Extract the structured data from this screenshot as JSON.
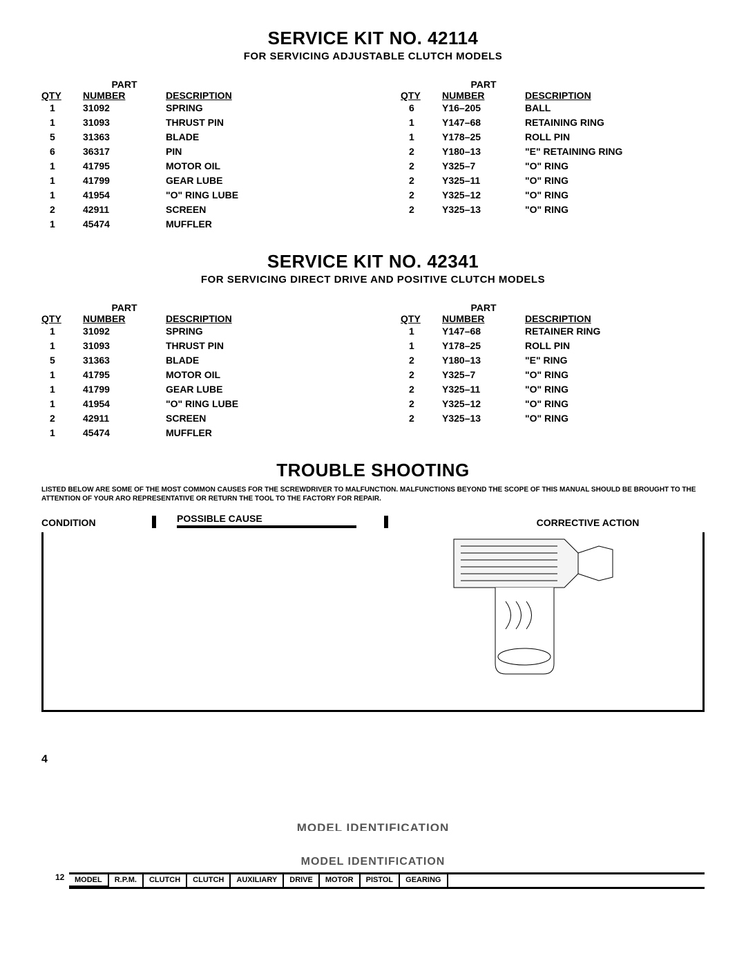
{
  "kit1": {
    "title": "SERVICE KIT NO. 42114",
    "subtitle": "FOR SERVICING ADJUSTABLE CLUTCH MODELS",
    "headers": {
      "qty": "QTY",
      "part": "PART",
      "number": "NUMBER",
      "desc": "DESCRIPTION"
    },
    "left": [
      {
        "qty": "1",
        "pn": "31092",
        "desc": "SPRING"
      },
      {
        "qty": "1",
        "pn": "31093",
        "desc": "THRUST PIN"
      },
      {
        "qty": "5",
        "pn": "31363",
        "desc": "BLADE"
      },
      {
        "qty": "6",
        "pn": "36317",
        "desc": "PIN"
      },
      {
        "qty": "1",
        "pn": "41795",
        "desc": "MOTOR OIL"
      },
      {
        "qty": "1",
        "pn": "41799",
        "desc": "GEAR LUBE"
      },
      {
        "qty": "1",
        "pn": "41954",
        "desc": "\"O\" RING LUBE"
      },
      {
        "qty": "2",
        "pn": "42911",
        "desc": "SCREEN"
      },
      {
        "qty": "1",
        "pn": "45474",
        "desc": "MUFFLER"
      }
    ],
    "right": [
      {
        "qty": "6",
        "pn": "Y16–205",
        "desc": "BALL"
      },
      {
        "qty": "1",
        "pn": "Y147–68",
        "desc": "RETAINING RING"
      },
      {
        "qty": "1",
        "pn": "Y178–25",
        "desc": "ROLL PIN"
      },
      {
        "qty": "2",
        "pn": "Y180–13",
        "desc": "\"E\" RETAINING RING"
      },
      {
        "qty": "2",
        "pn": "Y325–7",
        "desc": "\"O\" RING"
      },
      {
        "qty": "2",
        "pn": "Y325–11",
        "desc": "\"O\" RING"
      },
      {
        "qty": "2",
        "pn": "Y325–12",
        "desc": "\"O\" RING"
      },
      {
        "qty": "2",
        "pn": "Y325–13",
        "desc": "\"O\" RING"
      }
    ]
  },
  "kit2": {
    "title": "SERVICE KIT NO. 42341",
    "subtitle": "FOR SERVICING DIRECT DRIVE AND POSITIVE CLUTCH MODELS",
    "headers": {
      "qty": "QTY",
      "part": "PART",
      "number": "NUMBER",
      "desc": "DESCRIPTION"
    },
    "left": [
      {
        "qty": "1",
        "pn": "31092",
        "desc": "SPRING"
      },
      {
        "qty": "1",
        "pn": "31093",
        "desc": "THRUST PIN"
      },
      {
        "qty": "5",
        "pn": "31363",
        "desc": "BLADE"
      },
      {
        "qty": "1",
        "pn": "41795",
        "desc": "MOTOR OIL"
      },
      {
        "qty": "1",
        "pn": "41799",
        "desc": "GEAR LUBE"
      },
      {
        "qty": "1",
        "pn": "41954",
        "desc": "\"O\" RING LUBE"
      },
      {
        "qty": "2",
        "pn": "42911",
        "desc": "SCREEN"
      },
      {
        "qty": "1",
        "pn": "45474",
        "desc": "MUFFLER"
      }
    ],
    "right": [
      {
        "qty": "1",
        "pn": "Y147–68",
        "desc": "RETAINER RING"
      },
      {
        "qty": "1",
        "pn": "Y178–25",
        "desc": "ROLL PIN"
      },
      {
        "qty": "2",
        "pn": "Y180–13",
        "desc": "\"E\" RING"
      },
      {
        "qty": "2",
        "pn": "Y325–7",
        "desc": "\"O\" RING"
      },
      {
        "qty": "2",
        "pn": "Y325–11",
        "desc": "\"O\" RING"
      },
      {
        "qty": "2",
        "pn": "Y325–12",
        "desc": "\"O\" RING"
      },
      {
        "qty": "2",
        "pn": "Y325–13",
        "desc": "\"O\" RING"
      }
    ]
  },
  "trouble": {
    "title": "TROUBLE SHOOTING",
    "note": "LISTED BELOW ARE SOME OF THE MOST COMMON CAUSES FOR THE SCREWDRIVER TO MALFUNCTION. MALFUNCTIONS BEYOND THE SCOPE OF THIS MANUAL SHOULD BE BROUGHT TO THE ATTENTION OF YOUR ARO REPRESENTATIVE OR RETURN THE TOOL TO THE FACTORY FOR REPAIR.",
    "cols": {
      "condition": "CONDITION",
      "cause": "POSSIBLE CAUSE",
      "corrective": "CORRECTIVE ACTION"
    }
  },
  "page_no": "4",
  "model_id": {
    "title1": "MODEL IDENTIFICATION",
    "title2": "MODEL IDENTIFICATION",
    "cols": [
      "MODEL",
      "R.P.M.",
      "CLUTCH",
      "CLUTCH",
      "AUXILIARY",
      "DRIVE",
      "MOTOR",
      "PISTOL",
      "GEARING"
    ]
  },
  "page_left": "12"
}
